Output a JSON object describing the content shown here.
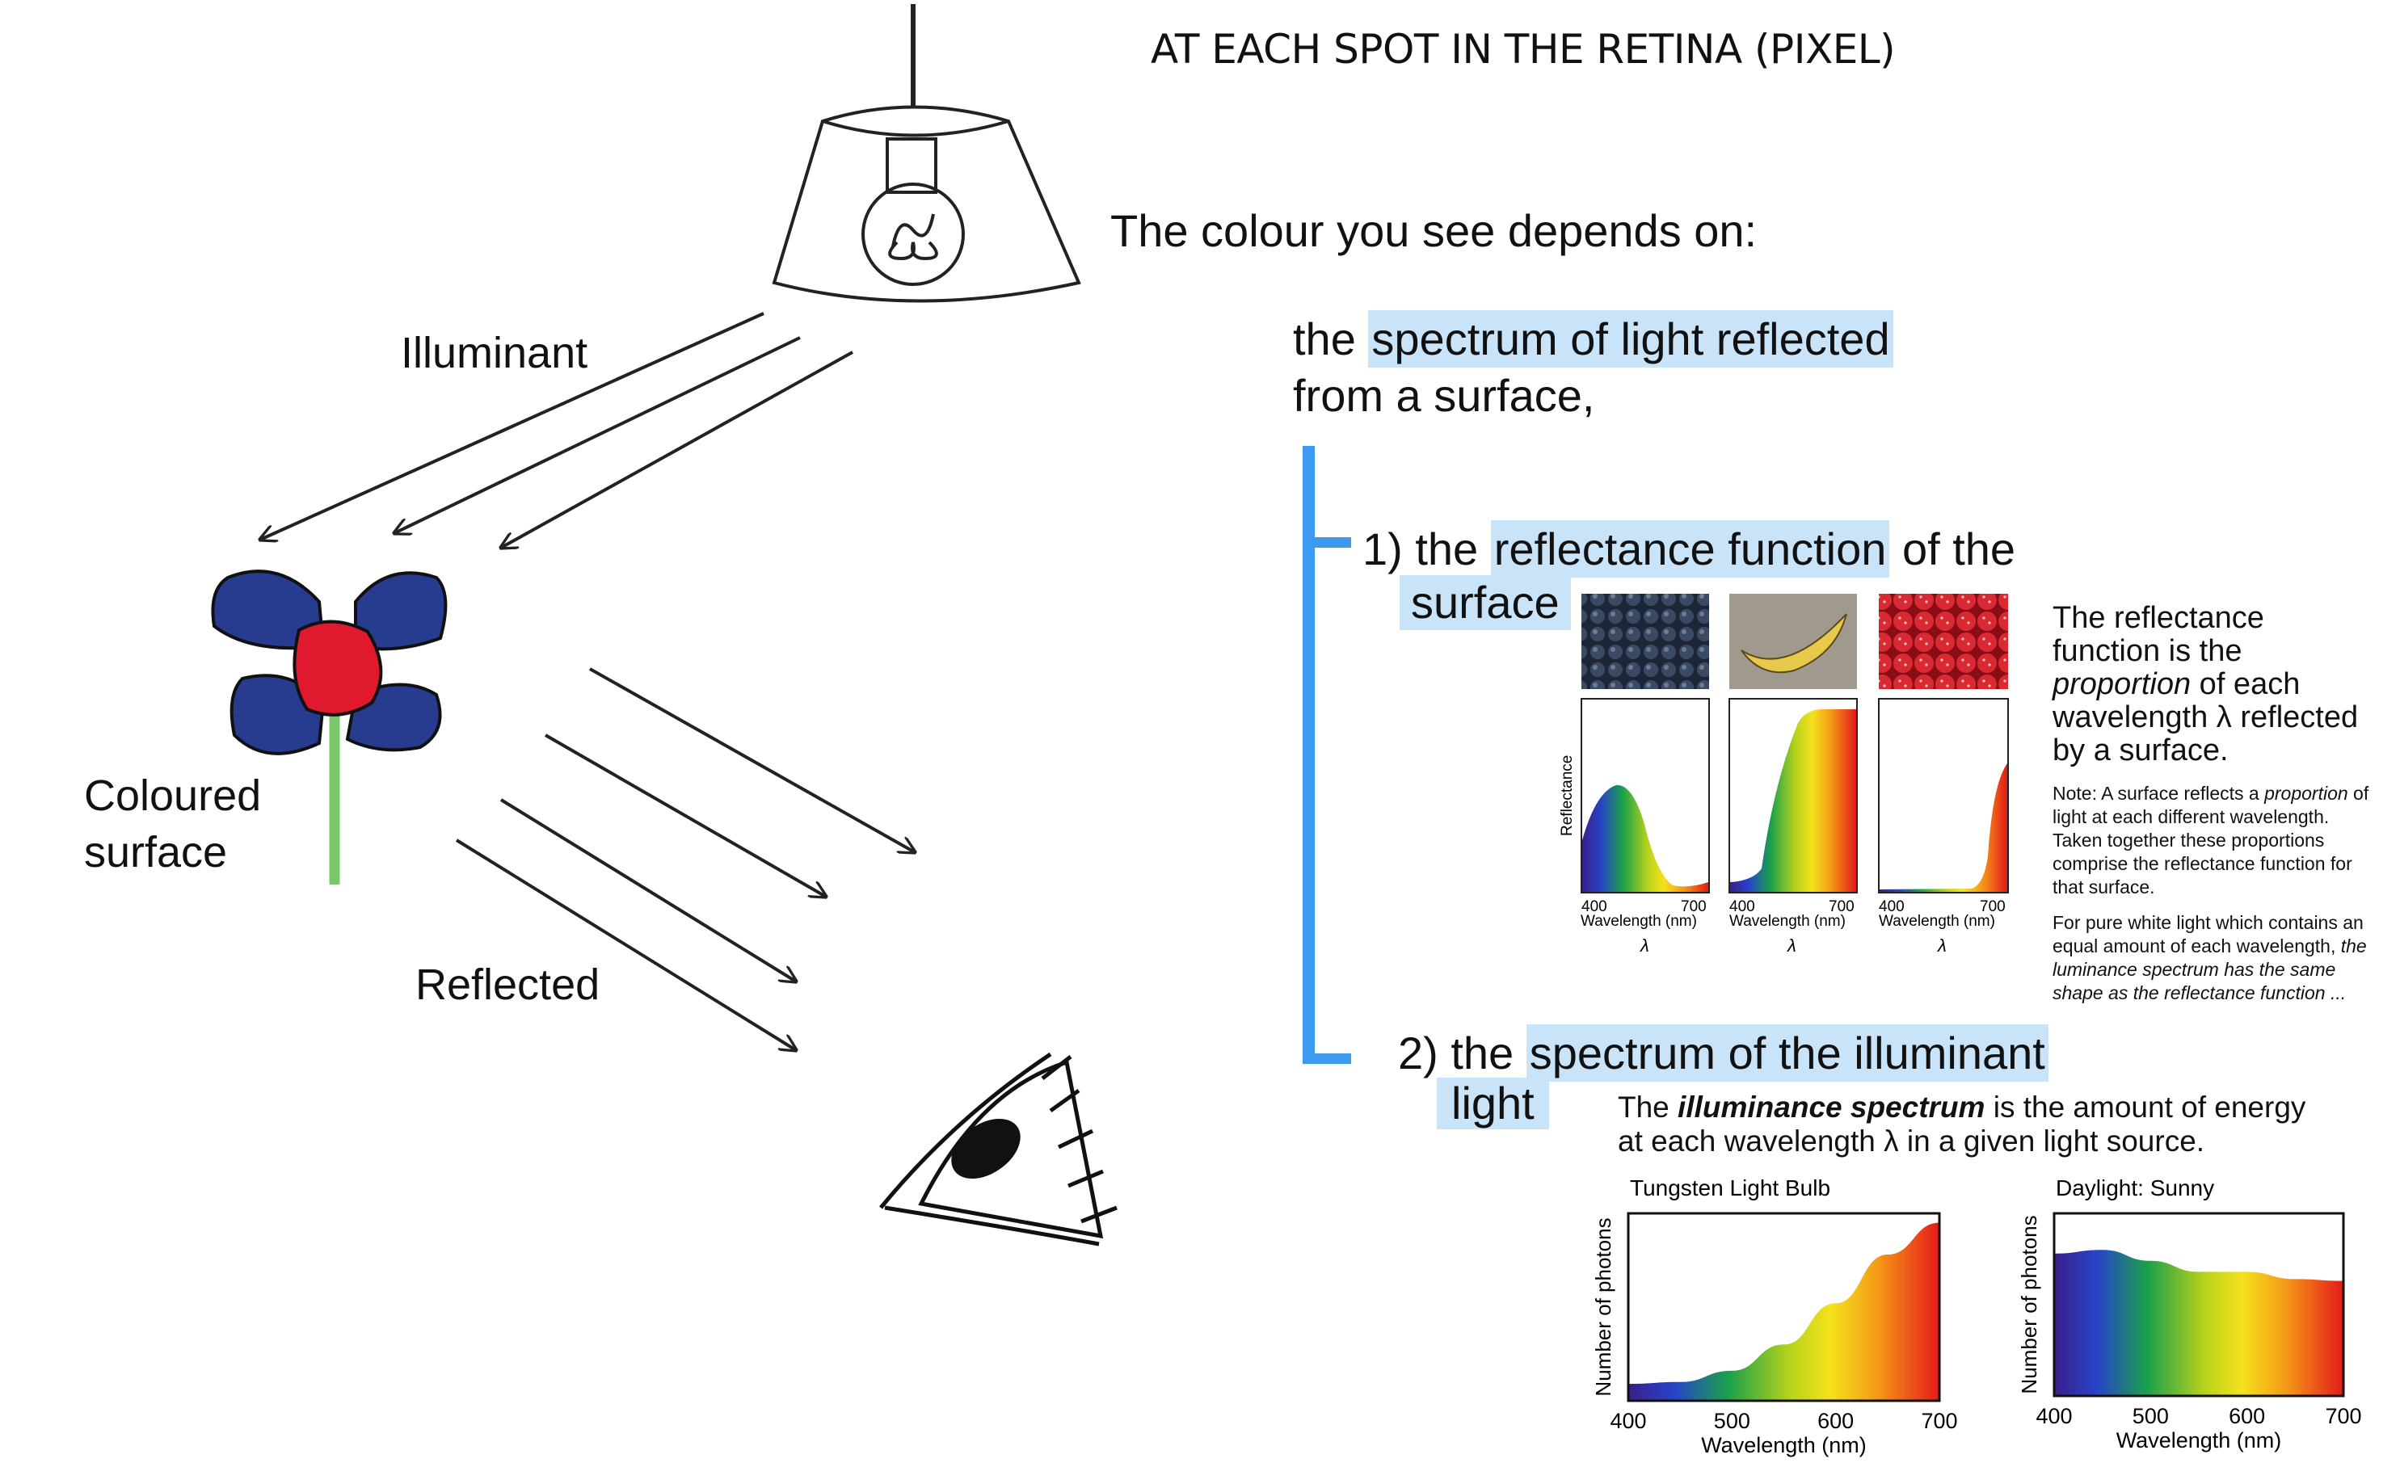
{
  "title": "AT EACH SPOT IN THE RETINA (PIXEL)",
  "intro": "The colour you see depends on:",
  "spectrum_line": {
    "pre": "the ",
    "highlight": "spectrum of light reflected",
    "line2": "from a surface,"
  },
  "scene_labels": {
    "illuminant": "Illuminant",
    "surface_line1": "Coloured",
    "surface_line2": "surface",
    "reflected": "Reflected"
  },
  "item1": {
    "num": "1) the ",
    "highlight": "reflectance function",
    "post": " of the",
    "line2": "surface"
  },
  "item2": {
    "num": "2) the ",
    "highlight": "spectrum of the illuminant",
    "line2": "light"
  },
  "reflectance_panels": {
    "ylabel": "Reflectance",
    "tick_low": "400",
    "tick_high": "700",
    "xlabel": "Wavelength (nm)",
    "lambda": "λ",
    "photos": [
      "blueberries",
      "banana",
      "strawberries"
    ]
  },
  "reflectance_desc": {
    "l1": "The reflectance",
    "l2": "function is the",
    "l3_em": "proportion",
    "l3_rest": " of each",
    "l4": "wavelength λ reflected",
    "l5": "by a surface."
  },
  "note1": {
    "a": "Note: A surface reflects a ",
    "em": "proportion",
    "b": " of light at each different wavelength. Taken together these proportions comprise the reflectance function for that surface."
  },
  "note2": {
    "a": "For pure white light which contains an equal amount of each wavelength, ",
    "em": "the luminance spectrum has the same shape as the reflectance function ..."
  },
  "illuminance_desc": {
    "a": "The ",
    "strong": "illuminance spectrum",
    "b": " is the amount of energy",
    "l2": "at each wavelength λ  in a given light source."
  },
  "chart_data": [
    {
      "type": "area",
      "title": "Tungsten Light Bulb",
      "xlabel": "Wavelength (nm)",
      "ylabel": "Number of photons",
      "xticks": [
        "400",
        "500",
        "600",
        "700"
      ],
      "x": [
        400,
        450,
        500,
        550,
        600,
        650,
        700
      ],
      "values": [
        0.09,
        0.1,
        0.16,
        0.3,
        0.52,
        0.78,
        0.95
      ],
      "xlim": [
        400,
        700
      ]
    },
    {
      "type": "area",
      "title": "Daylight: Sunny",
      "xlabel": "Wavelength (nm)",
      "ylabel": "Number of photons",
      "xticks": [
        "400",
        "500",
        "600",
        "700"
      ],
      "x": [
        400,
        450,
        500,
        550,
        600,
        650,
        700
      ],
      "values": [
        0.78,
        0.8,
        0.74,
        0.68,
        0.68,
        0.64,
        0.63
      ],
      "xlim": [
        400,
        700
      ]
    }
  ],
  "colors": {
    "highlight": "#c9e3f8",
    "bracket": "#3d9bef",
    "petal": "#283c8f",
    "flower_center": "#e0192e",
    "stem": "#7bc86c"
  }
}
